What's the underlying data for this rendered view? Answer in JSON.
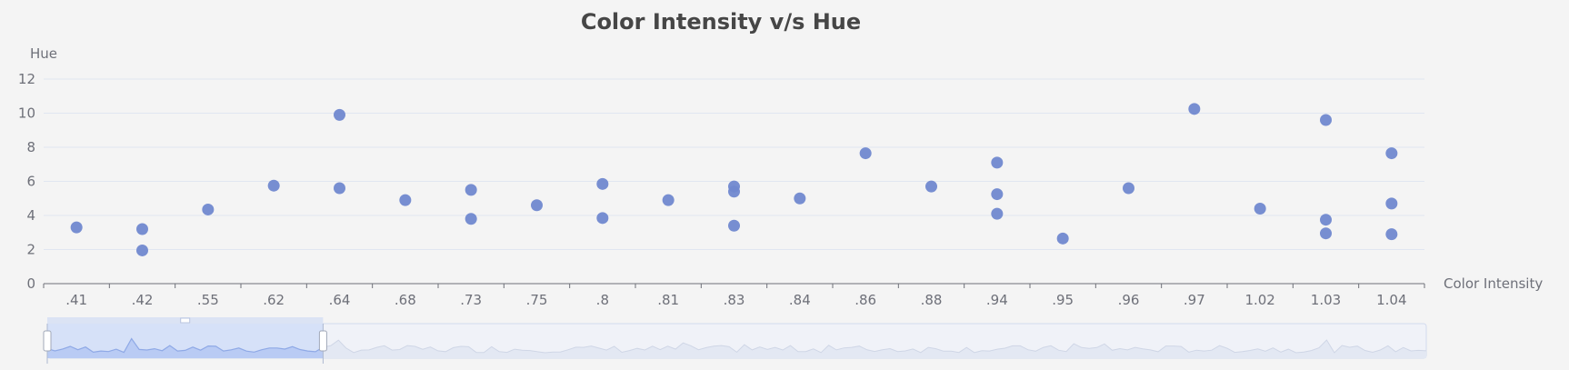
{
  "chart_data": {
    "type": "scatter",
    "title": "Color Intensity v/s Hue",
    "xlabel": "Color Intensity",
    "ylabel": "Hue",
    "categories": [
      ".41",
      ".42",
      ".55",
      ".62",
      ".64",
      ".68",
      ".73",
      ".75",
      ".8",
      ".81",
      ".83",
      ".84",
      ".86",
      ".88",
      ".94",
      ".95",
      ".96",
      ".97",
      "1.02",
      "1.03",
      "1.04"
    ],
    "ylim": [
      0,
      12
    ],
    "yticks": [
      0,
      2,
      4,
      6,
      8,
      10,
      12
    ],
    "grid": true,
    "point_color": "#7088cf",
    "points": [
      {
        "x": ".41",
        "y": 3.3
      },
      {
        "x": ".42",
        "y": 3.2
      },
      {
        "x": ".42",
        "y": 1.95
      },
      {
        "x": ".55",
        "y": 4.35
      },
      {
        "x": ".62",
        "y": 5.75
      },
      {
        "x": ".64",
        "y": 9.9
      },
      {
        "x": ".64",
        "y": 5.6
      },
      {
        "x": ".68",
        "y": 4.9
      },
      {
        "x": ".73",
        "y": 5.5
      },
      {
        "x": ".73",
        "y": 3.8
      },
      {
        "x": ".75",
        "y": 4.6
      },
      {
        "x": ".8",
        "y": 5.85
      },
      {
        "x": ".8",
        "y": 3.85
      },
      {
        "x": ".81",
        "y": 4.9
      },
      {
        "x": ".83",
        "y": 5.7
      },
      {
        "x": ".83",
        "y": 5.4
      },
      {
        "x": ".83",
        "y": 3.4
      },
      {
        "x": ".84",
        "y": 5.0
      },
      {
        "x": ".86",
        "y": 7.65
      },
      {
        "x": ".88",
        "y": 5.7
      },
      {
        "x": ".94",
        "y": 7.1
      },
      {
        "x": ".94",
        "y": 5.25
      },
      {
        "x": ".94",
        "y": 4.1
      },
      {
        "x": ".95",
        "y": 2.65
      },
      {
        "x": ".96",
        "y": 5.6
      },
      {
        "x": ".97",
        "y": 10.25
      },
      {
        "x": "1.02",
        "y": 4.4
      },
      {
        "x": "1.03",
        "y": 9.6
      },
      {
        "x": "1.03",
        "y": 3.75
      },
      {
        "x": "1.03",
        "y": 2.95
      },
      {
        "x": "1.04",
        "y": 7.65
      },
      {
        "x": "1.04",
        "y": 4.7
      },
      {
        "x": "1.04",
        "y": 2.9
      }
    ],
    "data_zoom": {
      "start_fraction": 0.0,
      "end_fraction": 0.2
    }
  }
}
